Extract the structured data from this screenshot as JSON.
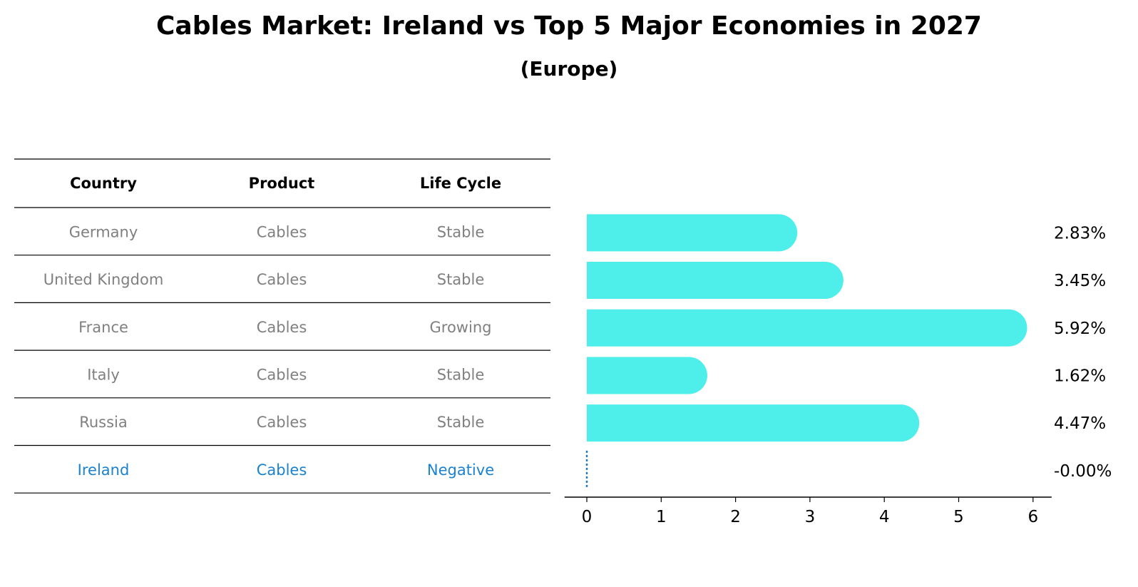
{
  "title": "Cables Market: Ireland vs Top 5 Major Economies in 2027",
  "subtitle": "(Europe)",
  "table": {
    "headers": [
      "Country",
      "Product",
      "Life Cycle"
    ],
    "rows": [
      {
        "country": "Germany",
        "product": "Cables",
        "life_cycle": "Stable"
      },
      {
        "country": "United Kingdom",
        "product": "Cables",
        "life_cycle": "Stable"
      },
      {
        "country": "France",
        "product": "Cables",
        "life_cycle": "Growing"
      },
      {
        "country": "Italy",
        "product": "Cables",
        "life_cycle": "Stable"
      },
      {
        "country": "Russia",
        "product": "Cables",
        "life_cycle": "Stable"
      },
      {
        "country": "Ireland",
        "product": "Cables",
        "life_cycle": "Negative"
      }
    ]
  },
  "colors": {
    "bar": "#4eeeea",
    "highlight": "#1a82d0",
    "muted_text": "#808080",
    "ireland_line": "#1f77b4"
  },
  "chart_data": {
    "type": "bar",
    "orientation": "horizontal",
    "categories": [
      "Germany",
      "United Kingdom",
      "France",
      "Italy",
      "Russia",
      "Ireland"
    ],
    "values": [
      2.83,
      3.45,
      5.92,
      1.62,
      4.47,
      -0.0
    ],
    "value_labels": [
      "2.83%",
      "3.45%",
      "5.92%",
      "1.62%",
      "4.47%",
      "-0.00%"
    ],
    "xlim": [
      -0.3,
      6.25
    ],
    "xticks": [
      "0",
      "1",
      "2",
      "3",
      "4",
      "5",
      "6"
    ],
    "grid": false
  }
}
